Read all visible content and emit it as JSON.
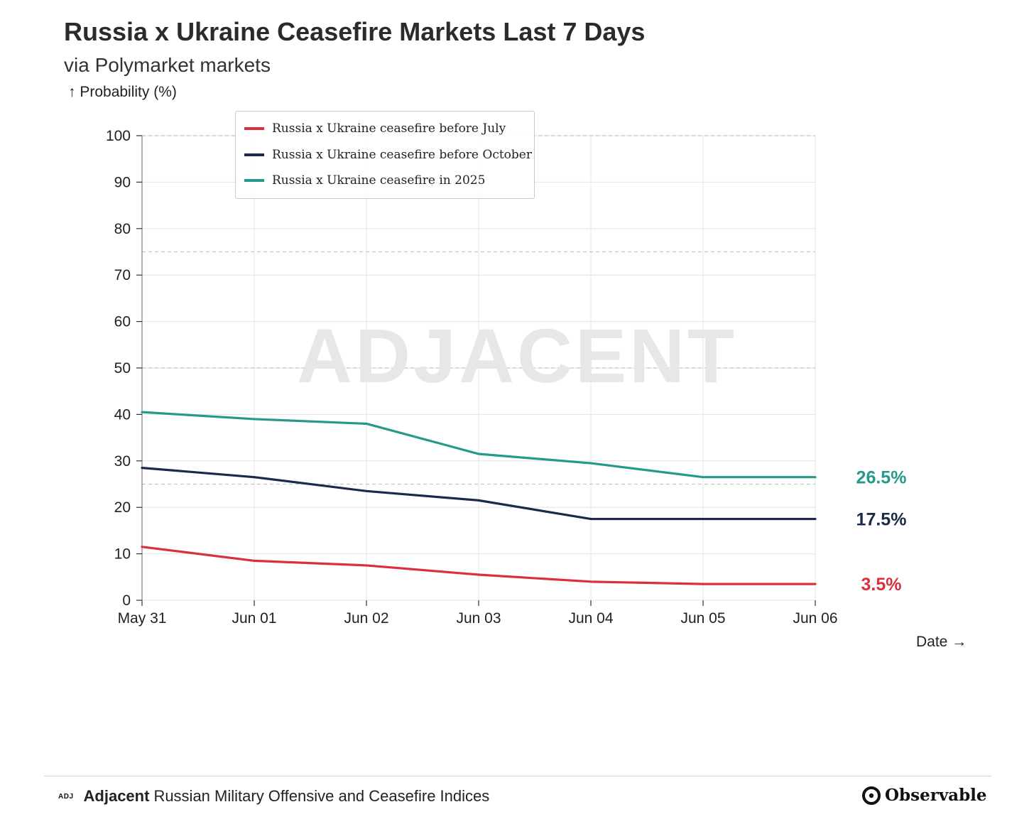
{
  "header": {
    "title": "Russia x Ukraine Ceasefire Markets Last 7 Days",
    "subtitle": "via Polymarket markets"
  },
  "watermark": "ADJACENT",
  "footer": {
    "logo_text": "ADJ",
    "brand": "Adjacent",
    "description": "Russian Military Offensive and Ceasefire Indices",
    "platform": "Observable",
    "platform_icon": "observable-logo-icon"
  },
  "chart_data": {
    "type": "line",
    "title": "Russia x Ukraine Ceasefire Markets Last 7 Days",
    "subtitle": "via Polymarket markets",
    "ylabel": "↑ Probability (%)",
    "xlabel": "Date →",
    "ylim": [
      0,
      100
    ],
    "yticks": [
      0,
      10,
      20,
      30,
      40,
      50,
      60,
      70,
      80,
      90,
      100
    ],
    "reference_lines": [
      25,
      50,
      75,
      100
    ],
    "x": [
      "May 31",
      "Jun 01",
      "Jun 02",
      "Jun 03",
      "Jun 04",
      "Jun 05",
      "Jun 06"
    ],
    "grid": true,
    "legend_position": "top-left",
    "series": [
      {
        "name": "Russia x Ukraine ceasefire before July",
        "color": "#dc2f3c",
        "values": [
          11.5,
          8.5,
          7.5,
          5.5,
          4.0,
          3.5,
          3.5
        ],
        "end_label": "3.5%"
      },
      {
        "name": "Russia x Ukraine ceasefire before October",
        "color": "#1b2a4a",
        "values": [
          28.5,
          26.5,
          23.5,
          21.5,
          17.5,
          17.5,
          17.5
        ],
        "end_label": "17.5%"
      },
      {
        "name": "Russia x Ukraine ceasefire in 2025",
        "color": "#259a8a",
        "values": [
          40.5,
          39.0,
          38.0,
          31.5,
          29.5,
          26.5,
          26.5
        ],
        "end_label": "26.5%"
      }
    ]
  }
}
